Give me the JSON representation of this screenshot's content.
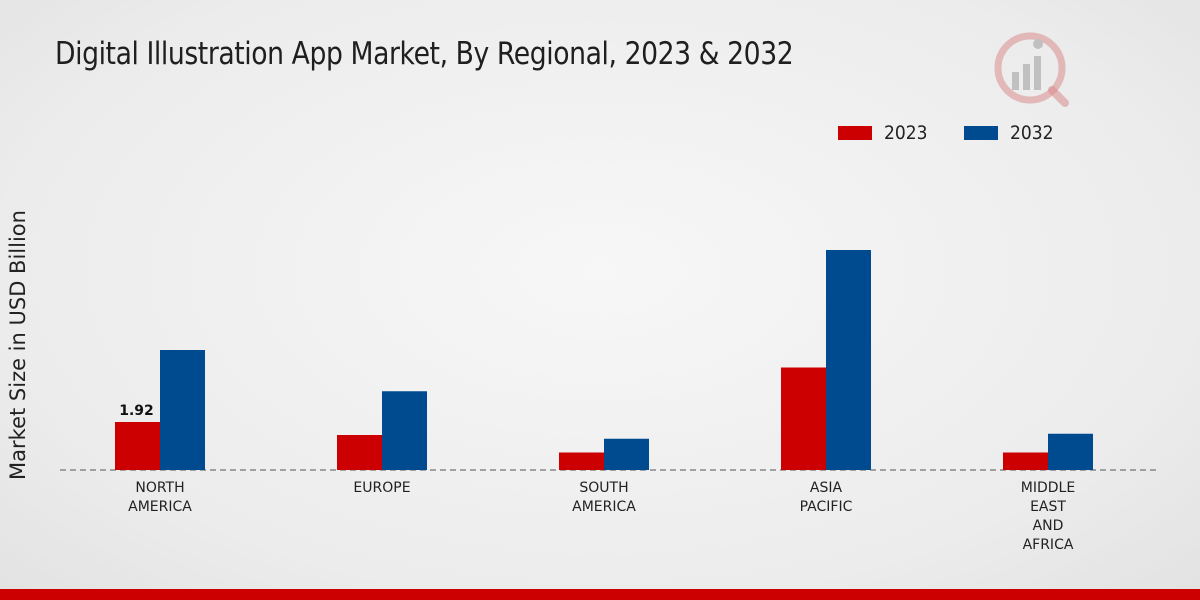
{
  "chart_data": {
    "type": "bar",
    "title": "Digital Illustration App Market, By Regional, 2023 & 2032",
    "ylabel": "Market Size in USD Billion",
    "xlabel": "",
    "categories": [
      [
        "NORTH",
        "AMERICA"
      ],
      [
        "EUROPE"
      ],
      [
        "SOUTH",
        "AMERICA"
      ],
      [
        "ASIA",
        "PACIFIC"
      ],
      [
        "MIDDLE",
        "EAST",
        "AND",
        "AFRICA"
      ]
    ],
    "series": [
      {
        "name": "2023",
        "color": "#cc0000",
        "values": [
          1.92,
          1.4,
          0.7,
          4.1,
          0.7
        ]
      },
      {
        "name": "2032",
        "color": "#004a8f",
        "values": [
          4.8,
          3.15,
          1.25,
          8.8,
          1.45
        ]
      }
    ],
    "data_labels": [
      {
        "series": 0,
        "category": 0,
        "text": "1.92"
      }
    ],
    "ylim": [
      0,
      12
    ],
    "grid": false,
    "legend_position": "top-right"
  },
  "colors": {
    "accent_bar": "#cc0000"
  }
}
